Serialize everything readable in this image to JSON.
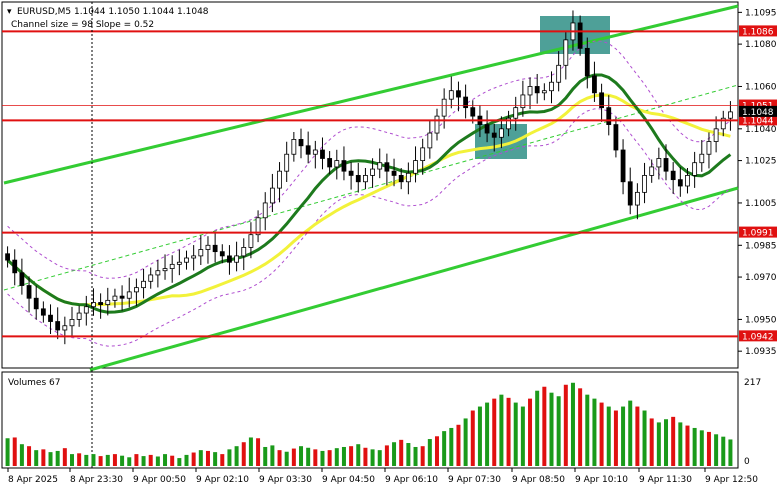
{
  "header": {
    "symbol_line": "EURUSD,M5  1.1044 1.1050 1.1044 1.1048",
    "channel_line": "Channel size = 98 Slope = 0.52"
  },
  "volume_panel": {
    "title": "Volumes 67",
    "max_label": "217",
    "min_label": "0"
  },
  "colors": {
    "background": "#ffffff",
    "bull_candle": "#000000",
    "volume_up": "#1a9a1a",
    "volume_down": "#e01010",
    "level_line": "#e01010",
    "channel_line": "#33cc33",
    "ma_fast": "#1d7a1d",
    "ma_slow": "#f2f23a",
    "envelope": "#b04fd0",
    "zone_box": "#2f8f86"
  },
  "chart_data": {
    "type": "candlestick",
    "symbol": "EURUSD",
    "timeframe": "M5",
    "ylim": [
      1.0928,
      1.1098
    ],
    "y_ticks": [
      "1.1095",
      "1.1080",
      "1.1060",
      "1.1040",
      "1.1025",
      "1.1005",
      "1.0985",
      "1.0970",
      "1.0950",
      "1.0935"
    ],
    "x_ticks": [
      "8 Apr 2025",
      "8 Apr 23:30",
      "9 Apr 00:50",
      "9 Apr 02:10",
      "9 Apr 03:30",
      "9 Apr 04:50",
      "9 Apr 06:10",
      "9 Apr 07:30",
      "9 Apr 08:50",
      "9 Apr 10:10",
      "9 Apr 11:30",
      "9 Apr 12:50"
    ],
    "levels": [
      {
        "label": "1.1086",
        "value": 1.1086
      },
      {
        "label": "1.1044",
        "value": 1.1044
      },
      {
        "label": "1.0991",
        "value": 1.0991
      },
      {
        "label": "1.0942",
        "value": 1.0942
      }
    ],
    "current_price": {
      "label": "1.1048",
      "value": 1.1048
    },
    "upper_tag": {
      "label": "1.1051",
      "value": 1.1051
    },
    "close_series": [
      1.0978,
      1.0972,
      1.0966,
      1.096,
      1.0955,
      1.0952,
      1.0949,
      1.0945,
      1.0947,
      1.095,
      1.0953,
      1.0956,
      1.0958,
      1.0957,
      1.0959,
      1.0961,
      1.096,
      1.0963,
      1.0965,
      1.0968,
      1.0971,
      1.0973,
      1.0974,
      1.0976,
      1.0977,
      1.0979,
      1.098,
      1.0983,
      1.0985,
      1.0982,
      1.098,
      1.0977,
      1.098,
      1.0984,
      1.099,
      1.0998,
      1.1005,
      1.1012,
      1.102,
      1.1028,
      1.1035,
      1.1032,
      1.1028,
      1.103,
      1.1026,
      1.1022,
      1.1025,
      1.102,
      1.1018,
      1.1015,
      1.1018,
      1.1021,
      1.1024,
      1.102,
      1.1018,
      1.1015,
      1.1019,
      1.1025,
      1.1031,
      1.1038,
      1.1046,
      1.1054,
      1.1058,
      1.1055,
      1.105,
      1.1046,
      1.1042,
      1.1038,
      1.1036,
      1.104,
      1.1045,
      1.105,
      1.1056,
      1.106,
      1.1057,
      1.1058,
      1.1062,
      1.107,
      1.1082,
      1.109,
      1.1078,
      1.1065,
      1.1057,
      1.105,
      1.1042,
      1.103,
      1.1015,
      1.1004,
      1.101,
      1.1018,
      1.1022,
      1.1026,
      1.102,
      1.1016,
      1.1013,
      1.1018,
      1.1024,
      1.1028,
      1.1034,
      1.104,
      1.1045,
      1.1048
    ],
    "volumes": [
      70,
      72,
      55,
      50,
      40,
      42,
      35,
      38,
      45,
      30,
      32,
      28,
      30,
      25,
      28,
      30,
      26,
      22,
      30,
      25,
      28,
      24,
      30,
      26,
      20,
      28,
      34,
      40,
      38,
      35,
      30,
      42,
      50,
      60,
      72,
      70,
      48,
      52,
      40,
      36,
      44,
      50,
      46,
      42,
      38,
      40,
      45,
      48,
      50,
      55,
      46,
      42,
      40,
      52,
      60,
      66,
      58,
      48,
      50,
      68,
      75,
      88,
      96,
      104,
      120,
      140,
      150,
      160,
      170,
      180,
      172,
      160,
      150,
      170,
      190,
      200,
      185,
      176,
      205,
      210,
      196,
      180,
      170,
      160,
      150,
      140,
      150,
      165,
      150,
      140,
      120,
      110,
      118,
      124,
      110,
      102,
      96,
      90,
      86,
      80,
      74,
      67
    ],
    "volume_up_flags": [
      1,
      0,
      1,
      0,
      1,
      0,
      1,
      1,
      0,
      1,
      0,
      1,
      1,
      0,
      1,
      0,
      1,
      1,
      0,
      1,
      0,
      1,
      1,
      0,
      1,
      1,
      0,
      1,
      0,
      1,
      0,
      1,
      1,
      0,
      1,
      0,
      1,
      1,
      0,
      1,
      0,
      1,
      1,
      0,
      1,
      0,
      1,
      1,
      0,
      1,
      0,
      1,
      1,
      0,
      1,
      0,
      1,
      1,
      0,
      1,
      0,
      1,
      1,
      0,
      1,
      0,
      1,
      1,
      0,
      1,
      0,
      1,
      1,
      0,
      1,
      0,
      1,
      1,
      0,
      1,
      0,
      1,
      1,
      0,
      1,
      0,
      1,
      1,
      0,
      1,
      0,
      1,
      1,
      0,
      1,
      0,
      1,
      1,
      0,
      1,
      1,
      1
    ]
  }
}
